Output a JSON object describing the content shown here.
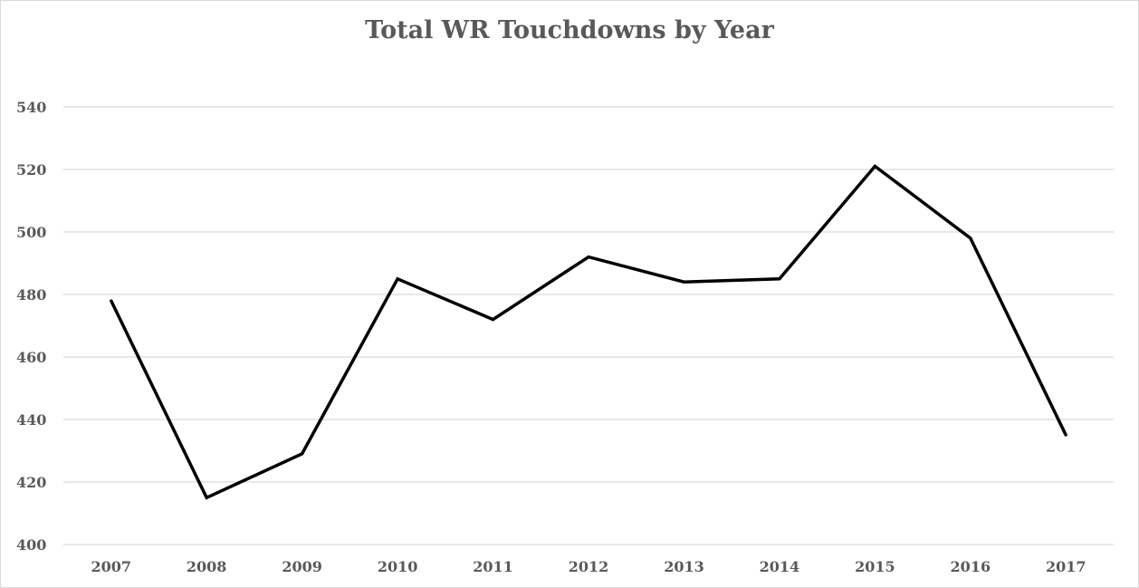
{
  "chart_data": {
    "type": "line",
    "title": "Total WR Touchdowns by Year",
    "xlabel": "",
    "ylabel": "",
    "categories": [
      "2007",
      "2008",
      "2009",
      "2010",
      "2011",
      "2012",
      "2013",
      "2014",
      "2015",
      "2016",
      "2017"
    ],
    "series": [
      {
        "values": [
          478,
          415,
          429,
          485,
          472,
          492,
          484,
          485,
          521,
          498,
          435
        ]
      }
    ],
    "ylim": [
      400,
      540
    ],
    "yticks": [
      400,
      420,
      440,
      460,
      480,
      500,
      520,
      540
    ],
    "grid": true,
    "legend": "none",
    "colors": {
      "line": "#000000",
      "grid": "#d9d9d9",
      "text": "#595959"
    }
  }
}
